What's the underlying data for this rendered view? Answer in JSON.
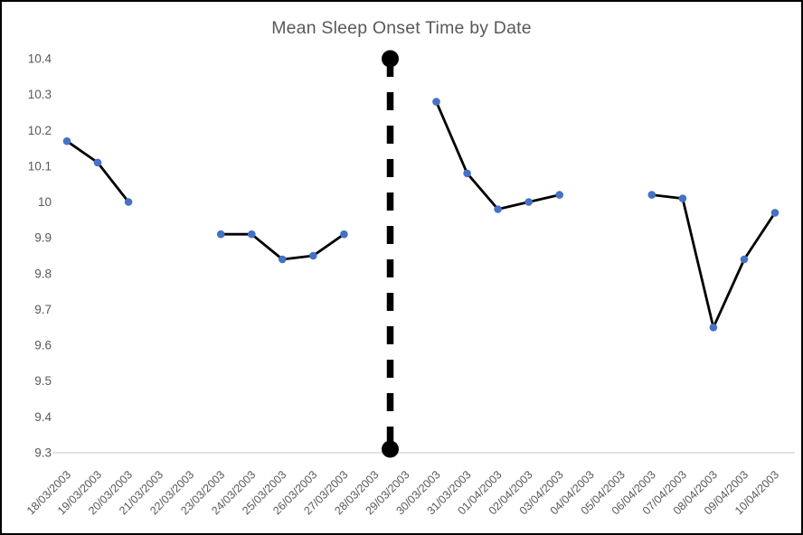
{
  "window": {
    "background_color": "#ffffff",
    "border_color": "#000000"
  },
  "chart_data": {
    "type": "line",
    "title": "Mean Sleep Onset Time by Date",
    "categories": [
      "18/03/2003",
      "19/03/2003",
      "20/03/2003",
      "21/03/2003",
      "22/03/2003",
      "23/03/2003",
      "24/03/2003",
      "25/03/2003",
      "26/03/2003",
      "27/03/2003",
      "28/03/2003",
      "29/03/2003",
      "30/03/2003",
      "31/03/2003",
      "01/04/2003",
      "02/04/2003",
      "03/04/2003",
      "04/04/2003",
      "05/04/2003",
      "06/04/2003",
      "07/04/2003",
      "08/04/2003",
      "09/04/2003",
      "10/04/2003"
    ],
    "series": [
      {
        "values": [
          10.17,
          10.11,
          10.0,
          null,
          null,
          9.91,
          9.91,
          9.84,
          9.85,
          9.91,
          null,
          null,
          10.28,
          10.08,
          9.98,
          10.0,
          10.02,
          null,
          null,
          10.02,
          10.01,
          9.65,
          9.84,
          9.97
        ]
      }
    ],
    "xlabel": "",
    "ylabel": "",
    "ylim": [
      9.3,
      10.4
    ],
    "y_ticks": [
      10.4,
      10.3,
      10.2,
      10.1,
      10,
      9.9,
      9.8,
      9.7,
      9.6,
      9.5,
      9.4,
      9.3
    ],
    "y_tick_labels": [
      "10.4",
      "10.3",
      "10.2",
      "10.1",
      "10",
      "9.9",
      "9.8",
      "9.7",
      "9.6",
      "9.5",
      "9.4",
      "9.3"
    ],
    "grid": false,
    "legend": "none",
    "line_color": "#000000",
    "marker_color": "#4472C4",
    "axis_text_color": "#595959",
    "title_color": "#595959",
    "axis_line_color": "#D9D9D9",
    "annotation": {
      "type": "vertical-dashed-divider",
      "between_categories": [
        "28/03/2003",
        "29/03/2003"
      ],
      "from_value": 10.4,
      "to_value": 9.31,
      "color": "#000000",
      "endpoint_markers": "filled-circle"
    }
  }
}
